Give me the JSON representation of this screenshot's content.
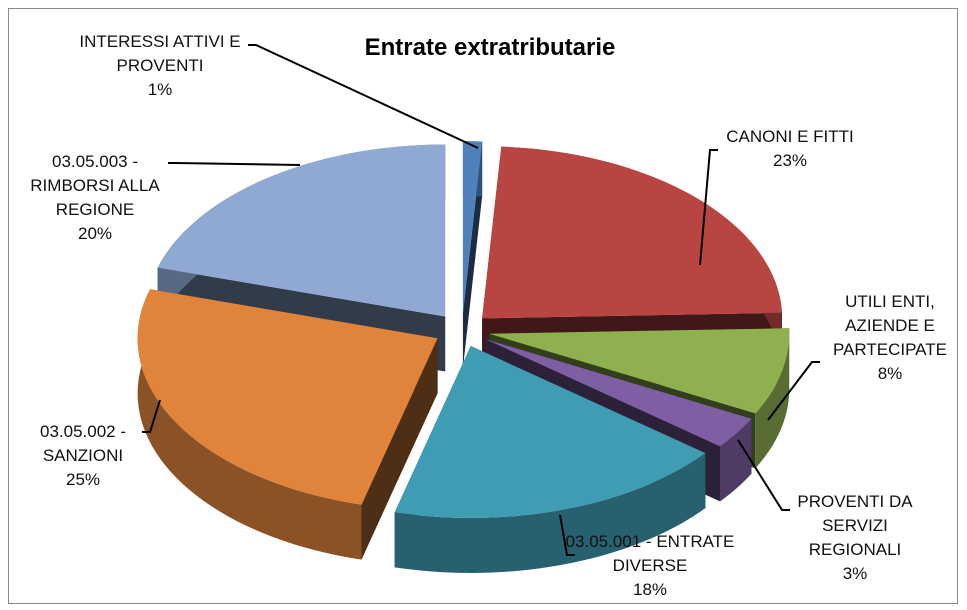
{
  "chart_data": {
    "type": "pie",
    "title": "Entrate extratributarie",
    "categories": [
      "INTERESSI ATTIVI E PROVENTI",
      "CANONI E FITTI",
      "UTILI ENTI, AZIENDE E PARTECIPATE",
      "PROVENTI DA SERVIZI REGIONALI",
      "03.05.001 - ENTRATE DIVERSE",
      "03.05.002 - SANZIONI",
      "03.05.003 - RIMBORSI ALLA REGIONE"
    ],
    "values": [
      1,
      23,
      8,
      3,
      18,
      25,
      20
    ],
    "value_labels": [
      "1%",
      "23%",
      "8%",
      "3%",
      "18%",
      "25%",
      "20%"
    ],
    "colors": [
      "#4f81bd",
      "#b94542",
      "#8eb04f",
      "#7f5fa3",
      "#3f9cb3",
      "#e0843c",
      "#90a9d3"
    ]
  }
}
